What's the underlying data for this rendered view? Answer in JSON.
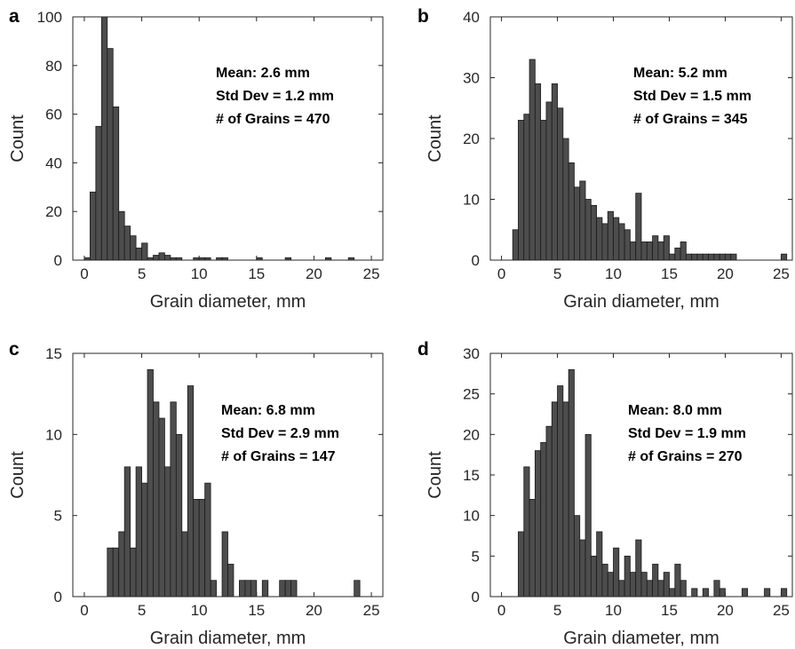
{
  "chart_data": [
    {
      "type": "bar",
      "panel_label": "a",
      "title": "",
      "xlabel": "Grain diameter, mm",
      "ylabel": "Count",
      "xlim": [
        -1,
        26
      ],
      "ylim": [
        0,
        100
      ],
      "xticks": [
        0,
        5,
        10,
        15,
        20,
        25
      ],
      "yticks": [
        0,
        20,
        40,
        60,
        80,
        100
      ],
      "bin_width": 0.5,
      "grid": false,
      "annotations": [
        "Mean: 2.6 mm",
        "Std Dev = 1.2 mm",
        "# of Grains = 470"
      ],
      "x": [
        0,
        0.5,
        1,
        1.5,
        2,
        2.5,
        3,
        3.5,
        4,
        4.5,
        5,
        5.5,
        6,
        6.5,
        7,
        7.5,
        8,
        9.5,
        10,
        10.5,
        11.5,
        12,
        15,
        17.5,
        21,
        23
      ],
      "values": [
        1,
        28,
        55,
        100,
        87,
        63,
        20,
        14,
        10,
        5,
        7,
        1,
        2,
        3,
        2,
        1,
        1,
        1,
        1,
        1,
        1,
        1,
        1,
        1,
        1,
        1
      ]
    },
    {
      "type": "bar",
      "panel_label": "b",
      "title": "",
      "xlabel": "Grain diameter, mm",
      "ylabel": "Count",
      "xlim": [
        -1,
        26
      ],
      "ylim": [
        0,
        40
      ],
      "xticks": [
        0,
        5,
        10,
        15,
        20,
        25
      ],
      "yticks": [
        0,
        10,
        20,
        30,
        40
      ],
      "bin_width": 0.5,
      "grid": false,
      "annotations": [
        "Mean: 5.2 mm",
        "Std Dev = 1.5 mm",
        "# of Grains = 345"
      ],
      "x": [
        1,
        1.5,
        2,
        2.5,
        3,
        3.5,
        4,
        4.5,
        5,
        5.5,
        6,
        6.5,
        7,
        7.5,
        8,
        8.5,
        9,
        9.5,
        10,
        10.5,
        11,
        11.5,
        12,
        12.5,
        13,
        13.5,
        14,
        14.5,
        15,
        15.5,
        16,
        16.5,
        17,
        17.5,
        18,
        18.5,
        19,
        19.5,
        20,
        20.5,
        25
      ],
      "values": [
        5,
        23,
        24,
        33,
        29,
        23,
        26,
        29,
        25,
        20,
        16,
        12,
        13,
        10,
        9,
        7,
        6,
        8,
        7,
        6,
        5,
        3,
        11,
        3,
        3,
        4,
        3,
        4,
        1,
        2,
        3,
        1,
        1,
        1,
        1,
        1,
        1,
        1,
        1,
        1,
        1
      ]
    },
    {
      "type": "bar",
      "panel_label": "c",
      "title": "",
      "xlabel": "Grain diameter, mm",
      "ylabel": "Count",
      "xlim": [
        -1,
        26
      ],
      "ylim": [
        0,
        15
      ],
      "xticks": [
        0,
        5,
        10,
        15,
        20,
        25
      ],
      "yticks": [
        0,
        5,
        10,
        15
      ],
      "bin_width": 0.5,
      "grid": false,
      "annotations": [
        "Mean: 6.8 mm",
        "Std Dev = 2.9 mm",
        "# of Grains = 147"
      ],
      "x": [
        2,
        2.5,
        3,
        3.5,
        4,
        4.5,
        5,
        5.5,
        6,
        6.5,
        7,
        7.5,
        8,
        8.5,
        9,
        9.5,
        10,
        10.5,
        11,
        11.5,
        12,
        12.5,
        13,
        13.5,
        14,
        14.5,
        15,
        15.5,
        16,
        16.5,
        17,
        17.5,
        18,
        18.5,
        19,
        19.5,
        20,
        20.5,
        21,
        21.5,
        22,
        22.5,
        23,
        23.5
      ],
      "values": [
        3,
        3,
        4,
        8,
        3,
        8,
        7,
        14,
        12,
        11,
        8,
        12,
        10,
        4,
        13,
        6,
        6,
        7,
        1,
        0,
        4,
        2,
        0,
        1,
        1,
        1,
        0,
        1,
        0,
        0,
        1,
        1,
        1,
        0,
        0,
        0,
        0,
        0,
        0,
        0,
        0,
        0,
        0,
        1
      ]
    },
    {
      "type": "bar",
      "panel_label": "d",
      "title": "",
      "xlabel": "Grain diameter, mm",
      "ylabel": "Count",
      "xlim": [
        -1,
        26
      ],
      "ylim": [
        0,
        30
      ],
      "xticks": [
        0,
        5,
        10,
        15,
        20,
        25
      ],
      "yticks": [
        0,
        5,
        10,
        15,
        20,
        25,
        30
      ],
      "bin_width": 0.5,
      "grid": false,
      "annotations": [
        "Mean: 8.0 mm",
        "Std Dev = 1.9 mm",
        "# of Grains = 270"
      ],
      "x": [
        1.5,
        2,
        2.5,
        3,
        3.5,
        4,
        4.5,
        5,
        5.5,
        6,
        6.5,
        7,
        7.5,
        8,
        8.5,
        9,
        9.5,
        10,
        10.5,
        11,
        11.5,
        12,
        12.5,
        13,
        13.5,
        14,
        14.5,
        15,
        15.5,
        16,
        16.5,
        17,
        17.5,
        18,
        18.5,
        19,
        19.5,
        20,
        20.5,
        21,
        21.5,
        22,
        22.5,
        23,
        23.5,
        24,
        24.5,
        25
      ],
      "values": [
        8,
        16,
        12,
        18,
        19,
        21,
        24,
        26,
        24,
        28,
        10,
        7,
        20,
        5,
        8,
        4,
        3,
        6,
        2,
        5,
        3,
        7,
        3,
        2,
        4,
        2,
        3,
        1,
        4,
        2,
        0,
        1,
        0,
        1,
        0,
        2,
        1,
        0,
        0,
        0,
        1,
        0,
        0,
        0,
        1,
        0,
        0,
        1
      ]
    }
  ]
}
